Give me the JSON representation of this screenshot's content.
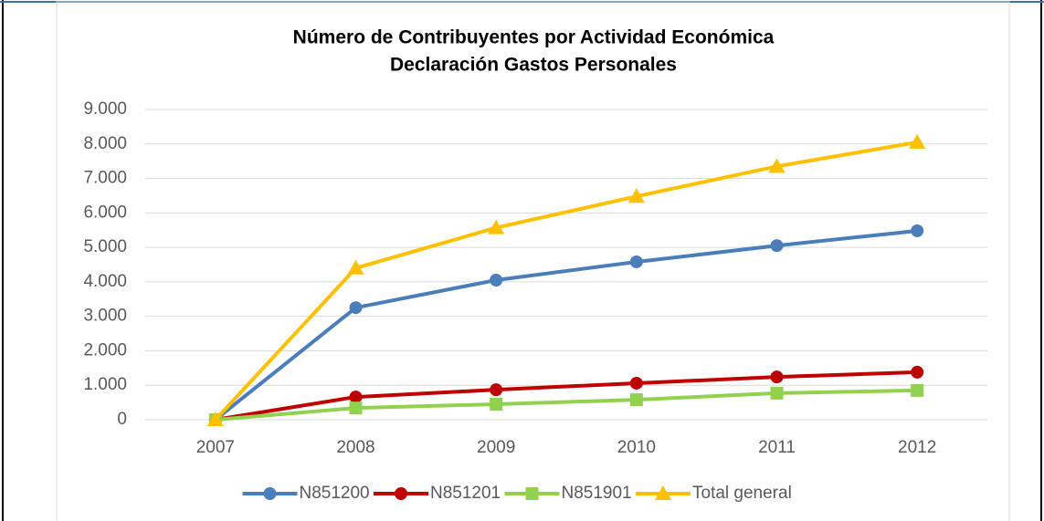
{
  "chart_data": {
    "type": "line",
    "title": "Número de Contribuyentes por Actividad Económica",
    "subtitle": "Declaración Gastos Personales",
    "categories": [
      "2007",
      "2008",
      "2009",
      "2010",
      "2011",
      "2012"
    ],
    "series": [
      {
        "name": "N851200",
        "color": "#4a7ebb",
        "marker": "circle",
        "values": [
          0,
          3250,
          4050,
          4580,
          5050,
          5480
        ]
      },
      {
        "name": "N851201",
        "color": "#c00000",
        "marker": "circle",
        "values": [
          0,
          660,
          870,
          1060,
          1240,
          1380
        ]
      },
      {
        "name": "N851901",
        "color": "#92d050",
        "marker": "square",
        "values": [
          0,
          340,
          450,
          580,
          770,
          850
        ]
      },
      {
        "name": "Total general",
        "color": "#ffc000",
        "marker": "triangle",
        "values": [
          0,
          4400,
          5570,
          6480,
          7350,
          8050
        ]
      }
    ],
    "ylim": [
      0,
      9000
    ],
    "yticks": [
      0,
      {
        "value": 1000,
        "label": "1.000"
      },
      {
        "value": 2000,
        "label": "2.000"
      },
      {
        "value": 3000,
        "label": "3.000"
      },
      {
        "value": 4000,
        "label": "4.000"
      },
      {
        "value": 5000,
        "label": "5.000"
      },
      {
        "value": 6000,
        "label": "6.000"
      },
      {
        "value": 7000,
        "label": "7.000"
      },
      {
        "value": 8000,
        "label": "8.000"
      },
      {
        "value": 9000,
        "label": "9.000"
      }
    ],
    "grid": true,
    "legend": "bottom"
  }
}
